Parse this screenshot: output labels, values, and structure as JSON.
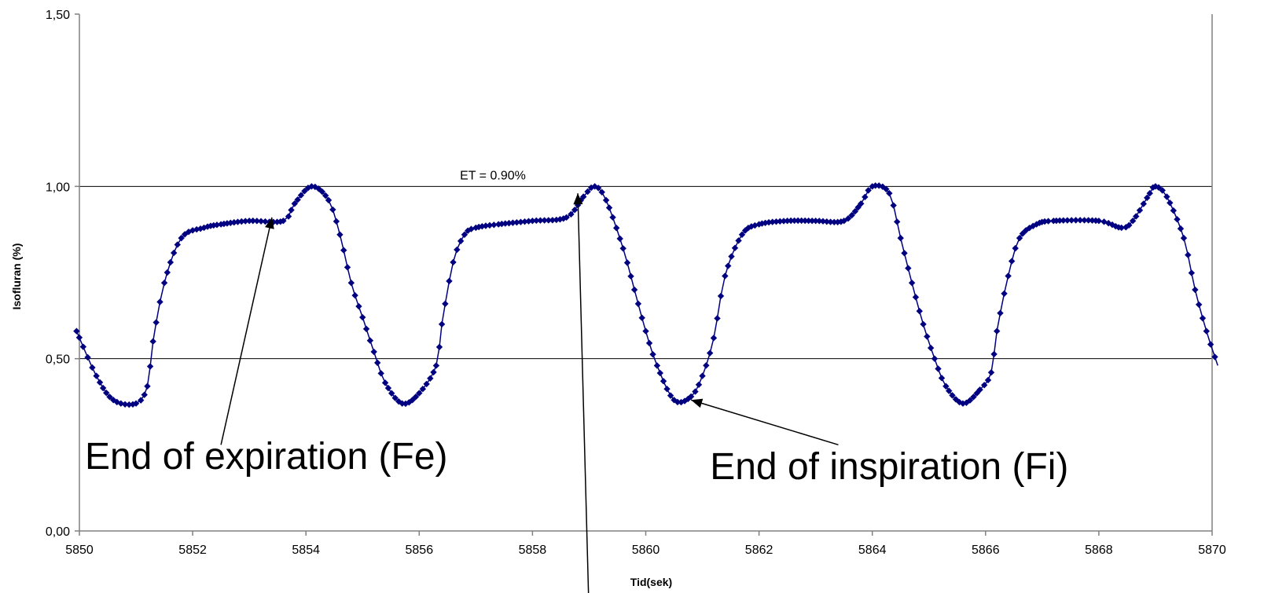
{
  "chart_data": {
    "type": "line",
    "title": "",
    "xlabel": "Tid(sek)",
    "ylabel": "Isofluran (%)",
    "xlim": [
      5850,
      5870
    ],
    "ylim": [
      0,
      1.5
    ],
    "x_ticks": [
      5850,
      5852,
      5854,
      5856,
      5858,
      5860,
      5862,
      5864,
      5866,
      5868,
      5870
    ],
    "x_tick_labels": [
      "5850",
      "5852",
      "5854",
      "5856",
      "5858",
      "5860",
      "5862",
      "5864",
      "5866",
      "5868",
      "5870"
    ],
    "y_ticks": [
      0,
      0.5,
      1.0,
      1.5
    ],
    "y_tick_labels": [
      "0,00",
      "0,50",
      "1,00",
      "1,50"
    ],
    "grid": "horizontal",
    "legend": "none",
    "series": [
      {
        "color": "#000080",
        "marker": "diamond",
        "points": [
          [
            5849.95,
            0.58
          ],
          [
            5850.3,
            0.45
          ],
          [
            5850.6,
            0.38
          ],
          [
            5851.0,
            0.37
          ],
          [
            5851.2,
            0.42
          ],
          [
            5851.3,
            0.55
          ],
          [
            5851.5,
            0.72
          ],
          [
            5851.8,
            0.85
          ],
          [
            5852.2,
            0.88
          ],
          [
            5852.5,
            0.89
          ],
          [
            5853.0,
            0.9
          ],
          [
            5853.6,
            0.9
          ],
          [
            5853.8,
            0.95
          ],
          [
            5854.1,
            1.0
          ],
          [
            5854.4,
            0.96
          ],
          [
            5854.6,
            0.86
          ],
          [
            5854.8,
            0.72
          ],
          [
            5855.0,
            0.62
          ],
          [
            5855.2,
            0.52
          ],
          [
            5855.4,
            0.43
          ],
          [
            5855.7,
            0.37
          ],
          [
            5856.0,
            0.4
          ],
          [
            5856.3,
            0.48
          ],
          [
            5856.4,
            0.6
          ],
          [
            5856.6,
            0.78
          ],
          [
            5856.8,
            0.86
          ],
          [
            5857.0,
            0.88
          ],
          [
            5857.4,
            0.89
          ],
          [
            5858.0,
            0.9
          ],
          [
            5858.6,
            0.91
          ],
          [
            5858.9,
            0.97
          ],
          [
            5859.1,
            1.0
          ],
          [
            5859.3,
            0.96
          ],
          [
            5859.6,
            0.82
          ],
          [
            5859.8,
            0.7
          ],
          [
            5860.0,
            0.58
          ],
          [
            5860.2,
            0.48
          ],
          [
            5860.5,
            0.38
          ],
          [
            5860.8,
            0.39
          ],
          [
            5861.0,
            0.45
          ],
          [
            5861.2,
            0.56
          ],
          [
            5861.4,
            0.74
          ],
          [
            5861.7,
            0.86
          ],
          [
            5862.0,
            0.89
          ],
          [
            5862.5,
            0.9
          ],
          [
            5863.0,
            0.9
          ],
          [
            5863.5,
            0.9
          ],
          [
            5863.8,
            0.95
          ],
          [
            5864.0,
            1.0
          ],
          [
            5864.3,
            0.98
          ],
          [
            5864.5,
            0.85
          ],
          [
            5864.7,
            0.72
          ],
          [
            5864.9,
            0.6
          ],
          [
            5865.1,
            0.5
          ],
          [
            5865.3,
            0.42
          ],
          [
            5865.6,
            0.37
          ],
          [
            5865.9,
            0.41
          ],
          [
            5866.1,
            0.46
          ],
          [
            5866.2,
            0.58
          ],
          [
            5866.4,
            0.74
          ],
          [
            5866.6,
            0.85
          ],
          [
            5866.9,
            0.89
          ],
          [
            5867.2,
            0.9
          ],
          [
            5868.0,
            0.9
          ],
          [
            5868.4,
            0.88
          ],
          [
            5868.6,
            0.9
          ],
          [
            5868.9,
            0.98
          ],
          [
            5869.0,
            1.0
          ],
          [
            5869.2,
            0.97
          ],
          [
            5869.5,
            0.85
          ],
          [
            5869.7,
            0.7
          ],
          [
            5869.9,
            0.58
          ],
          [
            5870.1,
            0.48
          ]
        ]
      }
    ],
    "annotations": [
      {
        "text": "ET = 0.90%",
        "x": 5857.3,
        "y": 1.02,
        "size": "small"
      },
      {
        "text": "End of expiration (Fe)",
        "x": 5853.3,
        "y": 0.18,
        "size": "large",
        "arrow_from": [
          5852.5,
          0.25
        ],
        "arrow_to": [
          5853.4,
          0.91
        ]
      },
      {
        "text": "End of inspiration (Fi)",
        "x": 5864.3,
        "y": 0.15,
        "size": "large",
        "arrow_from": [
          5863.4,
          0.25
        ],
        "arrow_to": [
          5860.8,
          0.38
        ]
      },
      {
        "text": "",
        "arrow_from": [
          5859.0,
          -0.25
        ],
        "arrow_to": [
          5858.8,
          0.98
        ]
      }
    ]
  }
}
